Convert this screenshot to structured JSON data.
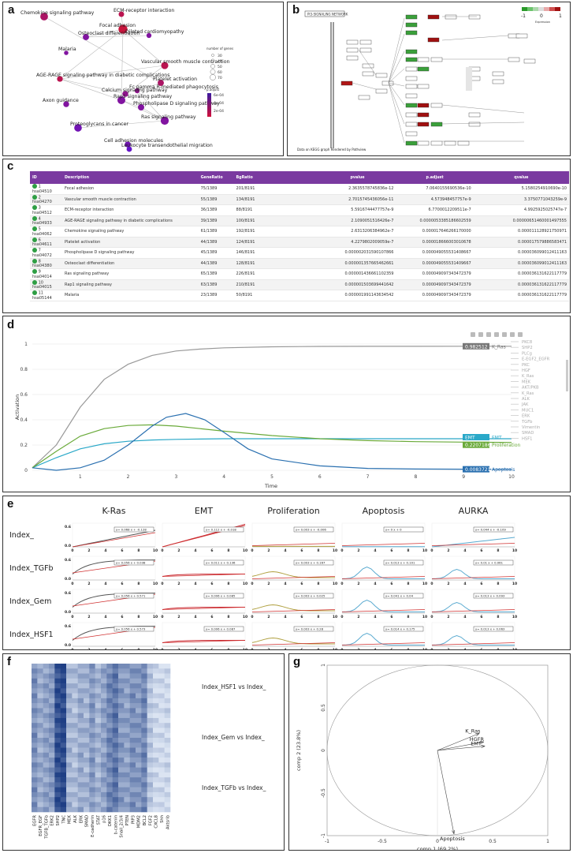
{
  "labels": {
    "a": "a",
    "b": "b",
    "c": "c",
    "d": "d",
    "e": "e",
    "f": "f",
    "g": "g"
  },
  "panel_a": {
    "legend_size_title": "number of genes",
    "legend_size_values": [
      "30",
      "40",
      "50",
      "60",
      "70"
    ],
    "legend_color_title": "p.adjust",
    "legend_color_values": [
      "6e-04",
      "4e-04",
      "2e-04"
    ]
  },
  "panel_b": {
    "title_box": "PI3-SIGNALING NETWORK",
    "footer": "Data on KEGG graph Rendered by Pathview",
    "scale_labels": [
      "-1",
      "0",
      "1"
    ],
    "scale_caption": "Expression"
  },
  "panel_c": {
    "headers": [
      "ID",
      "Description",
      "GeneRatio",
      "BgRatio",
      "pvalue",
      "p.adjust",
      "qvalue"
    ],
    "rows": [
      [
        "1",
        "hsa04510",
        "Focal adhesion",
        "75/1389",
        "201/8191",
        "2.3635578745836e-12",
        "7.0640155690536e-10",
        "5.1580254910690e-10"
      ],
      [
        "2",
        "hsa04270",
        "Vascular smooth muscle contraction",
        "55/1389",
        "134/8191",
        "2.7015745436056e-11",
        "4.573948457757e-9",
        "3.3750771043259e-9"
      ],
      [
        "3",
        "hsa04512",
        "ECM-receptor interaction",
        "36/1389",
        "88/8191",
        "5.5916744477757e-9",
        "6.7700012209511e-7",
        "4.9925925025747e-7"
      ],
      [
        "4",
        "hsa04933",
        "AGE-RAGE signaling pathway in diabetic complications",
        "39/1389",
        "100/8191",
        "2.1090051516426e-7",
        "0.0000053385186602559",
        "0.00000651460001497555"
      ],
      [
        "5",
        "hsa04062",
        "Chemokine signaling pathway",
        "61/1389",
        "192/8191",
        "2.6313206384962e-7",
        "0.000017646266170000",
        "0.000011128921750971"
      ],
      [
        "6",
        "hsa04611",
        "Platelet activation",
        "44/1389",
        "124/8191",
        "4.2279802009059e-7",
        "0.000018666003010678",
        "0.000017579886583471"
      ],
      [
        "7",
        "hsa04072",
        "Phospholipase D signaling pathway",
        "45/1389",
        "146/8191",
        "0.000002031590107866",
        "0.000049055531408667",
        "0.000036099012411163"
      ],
      [
        "8",
        "hsa04380",
        "Osteoclast differentiation",
        "44/1389",
        "128/8191",
        "0.000001357665462661",
        "0.000049055531409667",
        "0.000036099012411163"
      ],
      [
        "9",
        "hsa04014",
        "Ras signaling pathway",
        "65/1389",
        "226/8191",
        "0.000001436661102359",
        "0.000049097343472379",
        "0.000036131622117779"
      ],
      [
        "10",
        "hsa04015",
        "Rap1 signaling pathway",
        "63/1389",
        "210/8191",
        "0.000001503699441642",
        "0.000049097343472379",
        "0.000036131622117779"
      ],
      [
        "11",
        "hsa05144",
        "Malaria",
        "23/1389",
        "50/8191",
        "0.000001991143634542",
        "0.000049097343472379",
        "0.000036131622117779"
      ]
    ]
  },
  "panel_d": {
    "value_tags": [
      "0.982512",
      "EMT",
      "0.2207186",
      "0.008372183"
    ],
    "tag_names": [
      "K_Ras",
      "EMT",
      "Proliferation",
      "Apoptosis"
    ]
  },
  "panel_e": {
    "cols": [
      "K-Ras",
      "EMT",
      "Proliferation",
      "Apoptosis",
      "AURKA"
    ],
    "rows": [
      "Index_",
      "Index_TGFb",
      "Index_Gem",
      "Index_HSF1"
    ],
    "eqs": [
      [
        "y= 0.068 x + -0.128",
        "y= 0.112 x + -0.018",
        "y= 0.003 x + -0.006",
        "y= 0 x + 0",
        "y= 0.044 x + -0.109"
      ],
      [
        "y= 0.056 x + 0.038",
        "y= 0.011 x + 0.136",
        "y= 0.003 x + 0.167",
        "y= 0.013 x + 0.101",
        "y= 0.01 x + 0.061"
      ],
      [
        "y= 0.056 x + 0.571",
        "y= 0.006 x + 0.085",
        "y= 0.003 x + 0.025",
        "y= 0.041 x + 0.04",
        "y= 0.013 x + 0.093"
      ],
      [
        "y= 0.056 x + 0.573",
        "y= 0.006 x + 0.087",
        "y= 0.003 x + 0.28",
        "y= 0.014 x + 0.175",
        "y= 0.013 x + 0.063"
      ]
    ],
    "ytick": [
      "0.6",
      "0.0"
    ],
    "xticks": [
      "0",
      "2",
      "4",
      "6",
      "8",
      "10"
    ]
  },
  "panel_f": {
    "row_labels": [
      "Index_HSF1 vs Index_",
      "Index_Gem vs Index_",
      "Index_TGFb vs Index_"
    ],
    "col_labels": [
      "EGFR",
      "EGFR_EGF",
      "TGFB_TGFb",
      "ERK2",
      "SHP2",
      "TNC",
      "MEK",
      "ALK",
      "ERK",
      "SMAD",
      "E-cadherin",
      "STAT",
      "p16",
      "DKK1",
      "b-catenin",
      "Snail_2/3/4",
      "PTEN",
      "PIP3",
      "MDM2",
      "BCL2",
      "FGF2",
      "CXCL8",
      "Shh",
      "Aktsrib"
    ]
  },
  "chart_data": [
    {
      "type": "line",
      "panel": "d",
      "xlabel": "Time",
      "ylabel": "Activation",
      "xlim": [
        0,
        10
      ],
      "ylim": [
        0,
        1
      ],
      "xticks": [
        1,
        2,
        3,
        4,
        5,
        6,
        7,
        8,
        9,
        10
      ],
      "yticks": [
        0,
        0.2,
        0.4,
        0.6,
        0.8,
        1
      ],
      "legend": [
        "PKC8",
        "SHP2",
        "PLCg",
        "E-EGF2_EGFR",
        "PKC",
        "HGF",
        "K_Ras",
        "MEK",
        "AKT/PKB",
        "K_Ras",
        "ALK",
        "JAK",
        "MUC1",
        "ERK",
        "TGFb",
        "Vimentin",
        "SMAD",
        "HSF1"
      ],
      "series": [
        {
          "name": "K_Ras",
          "color": "#999999",
          "x": [
            0,
            0.5,
            1,
            1.5,
            2,
            2.5,
            3,
            3.5,
            4,
            5,
            6,
            7,
            8,
            9,
            10
          ],
          "values": [
            0.02,
            0.2,
            0.5,
            0.72,
            0.84,
            0.91,
            0.945,
            0.96,
            0.97,
            0.978,
            0.981,
            0.982,
            0.982,
            0.9825,
            0.9825
          ]
        },
        {
          "name": "EMT",
          "color": "#2aa8c8",
          "x": [
            0,
            0.5,
            1,
            1.5,
            2,
            2.5,
            3,
            4,
            5,
            6,
            7,
            8,
            9,
            10
          ],
          "values": [
            0.02,
            0.1,
            0.17,
            0.21,
            0.23,
            0.24,
            0.245,
            0.25,
            0.25,
            0.25,
            0.25,
            0.25,
            0.25,
            0.25
          ]
        },
        {
          "name": "Proliferation",
          "color": "#6aaa3a",
          "x": [
            0,
            0.5,
            1,
            1.5,
            2,
            2.5,
            3,
            3.5,
            4,
            5,
            6,
            7,
            8,
            9,
            10
          ],
          "values": [
            0.02,
            0.15,
            0.27,
            0.33,
            0.355,
            0.36,
            0.35,
            0.33,
            0.31,
            0.275,
            0.25,
            0.235,
            0.227,
            0.223,
            0.2207
          ]
        },
        {
          "name": "Apoptosis",
          "color": "#2a70b0",
          "x": [
            0,
            0.5,
            1,
            1.5,
            2,
            2.5,
            2.8,
            3.2,
            3.6,
            4,
            4.5,
            5,
            6,
            7,
            8,
            9,
            10
          ],
          "values": [
            0.02,
            0.0,
            0.02,
            0.08,
            0.2,
            0.35,
            0.42,
            0.45,
            0.4,
            0.3,
            0.17,
            0.09,
            0.035,
            0.015,
            0.01,
            0.009,
            0.0084
          ]
        }
      ]
    },
    {
      "type": "scatter",
      "panel": "g",
      "xlabel": "comp 1 (69.2%)",
      "ylabel": "comp 2 (23.8%)",
      "xlim": [
        -1,
        1
      ],
      "ylim": [
        -1,
        1
      ],
      "ticks": [
        -1,
        -0.5,
        0,
        0.5,
        1
      ],
      "arrows": [
        {
          "name": "K_Ras",
          "x": 0.38,
          "y": 0.2
        },
        {
          "name": "HGFR",
          "x": 0.42,
          "y": 0.1
        },
        {
          "name": "EMT",
          "x": 0.43,
          "y": 0.05
        },
        {
          "name": "Apoptosis",
          "x": 0.15,
          "y": -0.98
        }
      ]
    },
    {
      "type": "scatter",
      "panel": "a",
      "points": [
        {
          "name": "Chemokine signaling pathway",
          "genes": 61,
          "padj": 0.0002
        },
        {
          "name": "ECM-receptor interaction",
          "genes": 36,
          "padj": 0.0001
        },
        {
          "name": "Focal adhesion",
          "genes": 75,
          "padj": 0.0
        },
        {
          "name": "Osteoclast differentiation",
          "genes": 44,
          "padj": 0.0005
        },
        {
          "name": "Dilated cardiomyopathy",
          "genes": 30,
          "padj": 0.0005
        },
        {
          "name": "Malaria",
          "genes": 23,
          "padj": 0.0005
        },
        {
          "name": "Vascular smooth muscle contraction",
          "genes": 55,
          "padj": 0.0001
        },
        {
          "name": "Platelet activation",
          "genes": 44,
          "padj": 0.0002
        },
        {
          "name": "AGE-RAGE signaling pathway in diabetic complications",
          "genes": 39,
          "padj": 0.0001
        },
        {
          "name": "Fc gamma R-mediated phagocytosis",
          "genes": 30,
          "padj": 0.0004
        },
        {
          "name": "Calcium signaling pathway",
          "genes": 40,
          "padj": 0.0004
        },
        {
          "name": "Rap1 signaling pathway",
          "genes": 63,
          "padj": 0.0005
        },
        {
          "name": "Axon guidance",
          "genes": 40,
          "padj": 0.0005
        },
        {
          "name": "Phospholipase D signaling pathway",
          "genes": 45,
          "padj": 0.0005
        },
        {
          "name": "Ras signaling pathway",
          "genes": 65,
          "padj": 0.0005
        },
        {
          "name": "Proteoglycans in cancer",
          "genes": 60,
          "padj": 0.0006
        },
        {
          "name": "Cell adhesion molecules",
          "genes": 40,
          "padj": 0.0006
        },
        {
          "name": "Leukocyte transendothelial migration",
          "genes": 35,
          "padj": 0.0007
        }
      ]
    }
  ]
}
